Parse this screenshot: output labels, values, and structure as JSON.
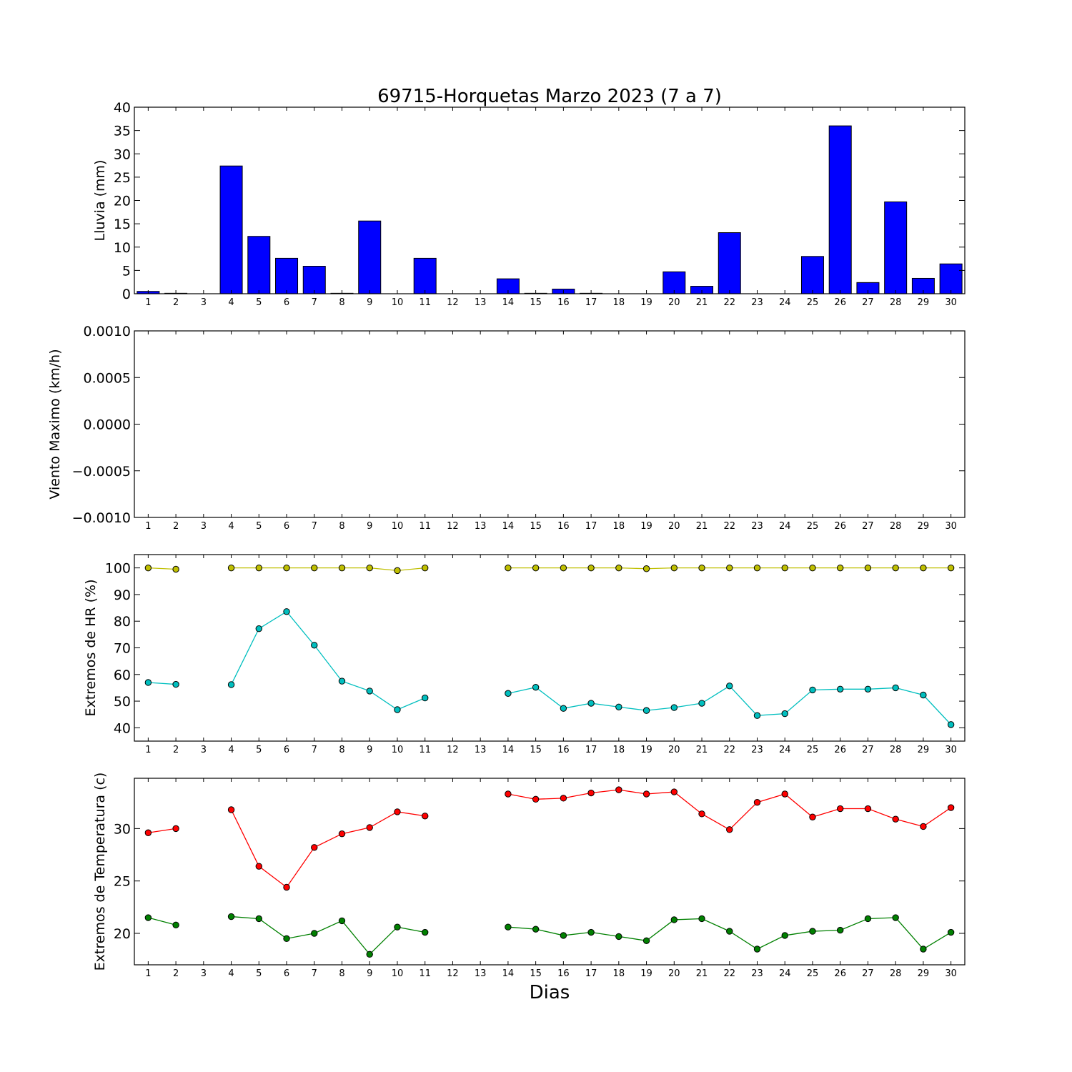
{
  "title": "69715-Horquetas Marzo 2023  (7 a 7)",
  "xlabel": "Dias",
  "colors": {
    "rain": "#0000ff",
    "hr_max": "#bfbf00",
    "hr_min": "#00bfbf",
    "temp_max": "#ff0000",
    "temp_min": "#008000"
  },
  "chart_data": [
    {
      "type": "bar",
      "ylabel": "Lluvia (mm)",
      "ylim": [
        0,
        40
      ],
      "yticks": [
        "0",
        "5",
        "10",
        "15",
        "20",
        "25",
        "30",
        "35",
        "40"
      ],
      "categories": [
        "1",
        "2",
        "3",
        "4",
        "5",
        "6",
        "7",
        "8",
        "9",
        "10",
        "11",
        "12",
        "13",
        "14",
        "15",
        "16",
        "17",
        "18",
        "19",
        "20",
        "21",
        "22",
        "23",
        "24",
        "25",
        "26",
        "27",
        "28",
        "29",
        "30"
      ],
      "values": [
        0.5,
        0.1,
        0,
        27.4,
        12.3,
        7.6,
        5.9,
        0.1,
        15.6,
        0,
        7.6,
        0,
        0,
        3.2,
        0.1,
        1.0,
        0.1,
        0,
        0,
        4.7,
        1.6,
        13.1,
        0,
        0,
        8.0,
        36.0,
        2.4,
        19.7,
        3.3,
        6.4
      ]
    },
    {
      "type": "line",
      "ylabel": "Viento Maximo (km/h)",
      "ylim": [
        -0.001,
        0.001
      ],
      "yticks": [
        "−0.0010",
        "−0.0005",
        "0.0000",
        "0.0005",
        "0.0010"
      ],
      "categories": [
        "1",
        "2",
        "3",
        "4",
        "5",
        "6",
        "7",
        "8",
        "9",
        "10",
        "11",
        "12",
        "13",
        "14",
        "15",
        "16",
        "17",
        "18",
        "19",
        "20",
        "21",
        "22",
        "23",
        "24",
        "25",
        "26",
        "27",
        "28",
        "29",
        "30"
      ],
      "series": []
    },
    {
      "type": "line",
      "ylabel": "Extremos de HR (%)",
      "ylim": [
        35,
        105
      ],
      "yticks": [
        "40",
        "50",
        "60",
        "70",
        "80",
        "90",
        "100"
      ],
      "categories": [
        "1",
        "2",
        "3",
        "4",
        "5",
        "6",
        "7",
        "8",
        "9",
        "10",
        "11",
        "12",
        "13",
        "14",
        "15",
        "16",
        "17",
        "18",
        "19",
        "20",
        "21",
        "22",
        "23",
        "24",
        "25",
        "26",
        "27",
        "28",
        "29",
        "30"
      ],
      "series": [
        {
          "values": [
            100,
            99.5,
            null,
            100,
            100,
            100,
            100,
            100,
            100,
            99,
            100,
            null,
            null,
            100,
            100,
            100,
            100,
            100,
            99.7,
            100,
            100,
            100,
            100,
            100,
            100,
            100,
            100,
            100,
            100,
            100
          ]
        },
        {
          "values": [
            57,
            56.3,
            null,
            56.2,
            77.2,
            83.6,
            71,
            57.5,
            53.8,
            46.8,
            51.2,
            null,
            null,
            52.9,
            55.2,
            47.3,
            49.2,
            47.8,
            46.5,
            47.6,
            49.2,
            55.7,
            44.6,
            45.3,
            54.2,
            54.5,
            54.5,
            55,
            52.3,
            41.2
          ]
        }
      ]
    },
    {
      "type": "line",
      "ylabel": "Extremos de Temperatura (c)",
      "ylim": [
        17.0,
        34.8
      ],
      "yticks": [
        "20",
        "25",
        "30"
      ],
      "categories": [
        "1",
        "2",
        "3",
        "4",
        "5",
        "6",
        "7",
        "8",
        "9",
        "10",
        "11",
        "12",
        "13",
        "14",
        "15",
        "16",
        "17",
        "18",
        "19",
        "20",
        "21",
        "22",
        "23",
        "24",
        "25",
        "26",
        "27",
        "28",
        "29",
        "30"
      ],
      "series": [
        {
          "values": [
            29.6,
            30.0,
            null,
            31.8,
            26.4,
            24.4,
            28.2,
            29.5,
            30.1,
            31.6,
            31.2,
            null,
            null,
            33.3,
            32.8,
            32.9,
            33.4,
            33.7,
            33.3,
            33.5,
            31.4,
            29.9,
            32.5,
            33.3,
            31.1,
            31.9,
            31.9,
            30.9,
            30.2,
            32.0
          ]
        },
        {
          "values": [
            21.5,
            20.8,
            null,
            21.6,
            21.4,
            19.5,
            20.0,
            21.2,
            18.0,
            20.6,
            20.1,
            null,
            null,
            20.6,
            20.4,
            19.8,
            20.1,
            19.7,
            19.3,
            21.3,
            21.4,
            20.2,
            18.5,
            19.8,
            20.2,
            20.3,
            21.4,
            21.5,
            18.5,
            20.1
          ]
        }
      ]
    }
  ]
}
